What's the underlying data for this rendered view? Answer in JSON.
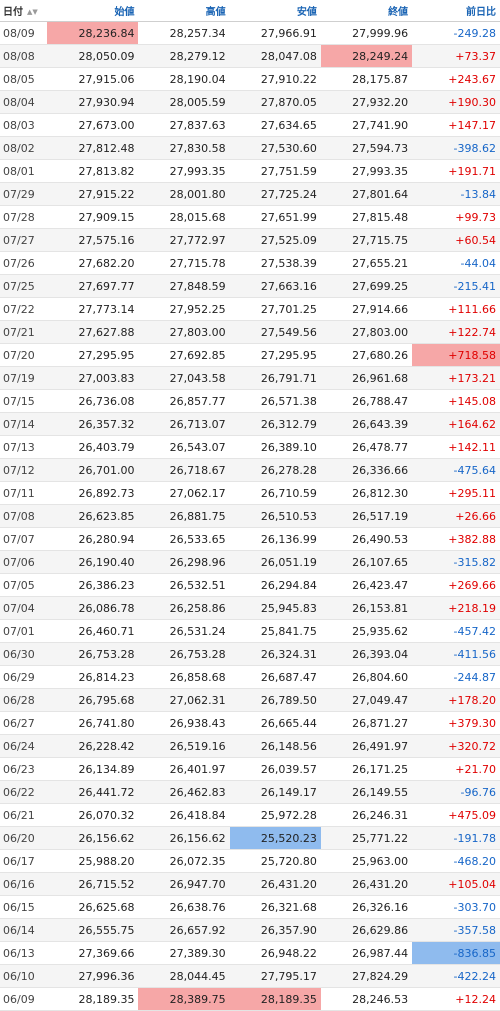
{
  "header": {
    "date": "日付",
    "open": "始値",
    "high": "高値",
    "low": "安値",
    "close": "終値",
    "change": "前日比",
    "sort_icon": "▲▼"
  },
  "colors": {
    "highlight_high": "#f6a7a7",
    "highlight_low": "#8fbbee",
    "positive": "#e00000",
    "negative": "#1766c8"
  },
  "rows": [
    {
      "date": "08/09",
      "open": "28,236.84",
      "high": "28,257.34",
      "low": "27,966.91",
      "close": "27,999.96",
      "change": "-249.28",
      "dir": "neg",
      "hl": {
        "open": "red"
      }
    },
    {
      "date": "08/08",
      "open": "28,050.09",
      "high": "28,279.12",
      "low": "28,047.08",
      "close": "28,249.24",
      "change": "+73.37",
      "dir": "pos",
      "hl": {
        "close": "red"
      }
    },
    {
      "date": "08/05",
      "open": "27,915.06",
      "high": "28,190.04",
      "low": "27,910.22",
      "close": "28,175.87",
      "change": "+243.67",
      "dir": "pos",
      "hl": {}
    },
    {
      "date": "08/04",
      "open": "27,930.94",
      "high": "28,005.59",
      "low": "27,870.05",
      "close": "27,932.20",
      "change": "+190.30",
      "dir": "pos",
      "hl": {}
    },
    {
      "date": "08/03",
      "open": "27,673.00",
      "high": "27,837.63",
      "low": "27,634.65",
      "close": "27,741.90",
      "change": "+147.17",
      "dir": "pos",
      "hl": {}
    },
    {
      "date": "08/02",
      "open": "27,812.48",
      "high": "27,830.58",
      "low": "27,530.60",
      "close": "27,594.73",
      "change": "-398.62",
      "dir": "neg",
      "hl": {}
    },
    {
      "date": "08/01",
      "open": "27,813.82",
      "high": "27,993.35",
      "low": "27,751.59",
      "close": "27,993.35",
      "change": "+191.71",
      "dir": "pos",
      "hl": {}
    },
    {
      "date": "07/29",
      "open": "27,915.22",
      "high": "28,001.80",
      "low": "27,725.24",
      "close": "27,801.64",
      "change": "-13.84",
      "dir": "neg",
      "hl": {}
    },
    {
      "date": "07/28",
      "open": "27,909.15",
      "high": "28,015.68",
      "low": "27,651.99",
      "close": "27,815.48",
      "change": "+99.73",
      "dir": "pos",
      "hl": {}
    },
    {
      "date": "07/27",
      "open": "27,575.16",
      "high": "27,772.97",
      "low": "27,525.09",
      "close": "27,715.75",
      "change": "+60.54",
      "dir": "pos",
      "hl": {}
    },
    {
      "date": "07/26",
      "open": "27,682.20",
      "high": "27,715.78",
      "low": "27,538.39",
      "close": "27,655.21",
      "change": "-44.04",
      "dir": "neg",
      "hl": {}
    },
    {
      "date": "07/25",
      "open": "27,697.77",
      "high": "27,848.59",
      "low": "27,663.16",
      "close": "27,699.25",
      "change": "-215.41",
      "dir": "neg",
      "hl": {}
    },
    {
      "date": "07/22",
      "open": "27,773.14",
      "high": "27,952.25",
      "low": "27,701.25",
      "close": "27,914.66",
      "change": "+111.66",
      "dir": "pos",
      "hl": {}
    },
    {
      "date": "07/21",
      "open": "27,627.88",
      "high": "27,803.00",
      "low": "27,549.56",
      "close": "27,803.00",
      "change": "+122.74",
      "dir": "pos",
      "hl": {}
    },
    {
      "date": "07/20",
      "open": "27,295.95",
      "high": "27,692.85",
      "low": "27,295.95",
      "close": "27,680.26",
      "change": "+718.58",
      "dir": "pos",
      "hl": {
        "change": "red"
      }
    },
    {
      "date": "07/19",
      "open": "27,003.83",
      "high": "27,043.58",
      "low": "26,791.71",
      "close": "26,961.68",
      "change": "+173.21",
      "dir": "pos",
      "hl": {}
    },
    {
      "date": "07/15",
      "open": "26,736.08",
      "high": "26,857.77",
      "low": "26,571.38",
      "close": "26,788.47",
      "change": "+145.08",
      "dir": "pos",
      "hl": {}
    },
    {
      "date": "07/14",
      "open": "26,357.32",
      "high": "26,713.07",
      "low": "26,312.79",
      "close": "26,643.39",
      "change": "+164.62",
      "dir": "pos",
      "hl": {}
    },
    {
      "date": "07/13",
      "open": "26,403.79",
      "high": "26,543.07",
      "low": "26,389.10",
      "close": "26,478.77",
      "change": "+142.11",
      "dir": "pos",
      "hl": {}
    },
    {
      "date": "07/12",
      "open": "26,701.00",
      "high": "26,718.67",
      "low": "26,278.28",
      "close": "26,336.66",
      "change": "-475.64",
      "dir": "neg",
      "hl": {}
    },
    {
      "date": "07/11",
      "open": "26,892.73",
      "high": "27,062.17",
      "low": "26,710.59",
      "close": "26,812.30",
      "change": "+295.11",
      "dir": "pos",
      "hl": {}
    },
    {
      "date": "07/08",
      "open": "26,623.85",
      "high": "26,881.75",
      "low": "26,510.53",
      "close": "26,517.19",
      "change": "+26.66",
      "dir": "pos",
      "hl": {}
    },
    {
      "date": "07/07",
      "open": "26,280.94",
      "high": "26,533.65",
      "low": "26,136.99",
      "close": "26,490.53",
      "change": "+382.88",
      "dir": "pos",
      "hl": {}
    },
    {
      "date": "07/06",
      "open": "26,190.40",
      "high": "26,298.96",
      "low": "26,051.19",
      "close": "26,107.65",
      "change": "-315.82",
      "dir": "neg",
      "hl": {}
    },
    {
      "date": "07/05",
      "open": "26,386.23",
      "high": "26,532.51",
      "low": "26,294.84",
      "close": "26,423.47",
      "change": "+269.66",
      "dir": "pos",
      "hl": {}
    },
    {
      "date": "07/04",
      "open": "26,086.78",
      "high": "26,258.86",
      "low": "25,945.83",
      "close": "26,153.81",
      "change": "+218.19",
      "dir": "pos",
      "hl": {}
    },
    {
      "date": "07/01",
      "open": "26,460.71",
      "high": "26,531.24",
      "low": "25,841.75",
      "close": "25,935.62",
      "change": "-457.42",
      "dir": "neg",
      "hl": {}
    },
    {
      "date": "06/30",
      "open": "26,753.28",
      "high": "26,753.28",
      "low": "26,324.31",
      "close": "26,393.04",
      "change": "-411.56",
      "dir": "neg",
      "hl": {}
    },
    {
      "date": "06/29",
      "open": "26,814.23",
      "high": "26,858.68",
      "low": "26,687.47",
      "close": "26,804.60",
      "change": "-244.87",
      "dir": "neg",
      "hl": {}
    },
    {
      "date": "06/28",
      "open": "26,795.68",
      "high": "27,062.31",
      "low": "26,789.50",
      "close": "27,049.47",
      "change": "+178.20",
      "dir": "pos",
      "hl": {}
    },
    {
      "date": "06/27",
      "open": "26,741.80",
      "high": "26,938.43",
      "low": "26,665.44",
      "close": "26,871.27",
      "change": "+379.30",
      "dir": "pos",
      "hl": {}
    },
    {
      "date": "06/24",
      "open": "26,228.42",
      "high": "26,519.16",
      "low": "26,148.56",
      "close": "26,491.97",
      "change": "+320.72",
      "dir": "pos",
      "hl": {}
    },
    {
      "date": "06/23",
      "open": "26,134.89",
      "high": "26,401.97",
      "low": "26,039.57",
      "close": "26,171.25",
      "change": "+21.70",
      "dir": "pos",
      "hl": {}
    },
    {
      "date": "06/22",
      "open": "26,441.72",
      "high": "26,462.83",
      "low": "26,149.17",
      "close": "26,149.55",
      "change": "-96.76",
      "dir": "neg",
      "hl": {}
    },
    {
      "date": "06/21",
      "open": "26,070.32",
      "high": "26,418.84",
      "low": "25,972.28",
      "close": "26,246.31",
      "change": "+475.09",
      "dir": "pos",
      "hl": {}
    },
    {
      "date": "06/20",
      "open": "26,156.62",
      "high": "26,156.62",
      "low": "25,520.23",
      "close": "25,771.22",
      "change": "-191.78",
      "dir": "neg",
      "hl": {
        "low": "blue"
      }
    },
    {
      "date": "06/17",
      "open": "25,988.20",
      "high": "26,072.35",
      "low": "25,720.80",
      "close": "25,963.00",
      "change": "-468.20",
      "dir": "neg",
      "hl": {}
    },
    {
      "date": "06/16",
      "open": "26,715.52",
      "high": "26,947.70",
      "low": "26,431.20",
      "close": "26,431.20",
      "change": "+105.04",
      "dir": "pos",
      "hl": {}
    },
    {
      "date": "06/15",
      "open": "26,625.68",
      "high": "26,638.76",
      "low": "26,321.68",
      "close": "26,326.16",
      "change": "-303.70",
      "dir": "neg",
      "hl": {}
    },
    {
      "date": "06/14",
      "open": "26,555.75",
      "high": "26,657.92",
      "low": "26,357.90",
      "close": "26,629.86",
      "change": "-357.58",
      "dir": "neg",
      "hl": {}
    },
    {
      "date": "06/13",
      "open": "27,369.66",
      "high": "27,389.30",
      "low": "26,948.22",
      "close": "26,987.44",
      "change": "-836.85",
      "dir": "neg",
      "hl": {
        "change": "blue"
      }
    },
    {
      "date": "06/10",
      "open": "27,996.36",
      "high": "28,044.45",
      "low": "27,795.17",
      "close": "27,824.29",
      "change": "-422.24",
      "dir": "neg",
      "hl": {}
    },
    {
      "date": "06/09",
      "open": "28,189.35",
      "high": "28,389.75",
      "low": "28,189.35",
      "close": "28,246.53",
      "change": "+12.24",
      "dir": "pos",
      "hl": {
        "high": "red",
        "low": "red"
      }
    }
  ]
}
